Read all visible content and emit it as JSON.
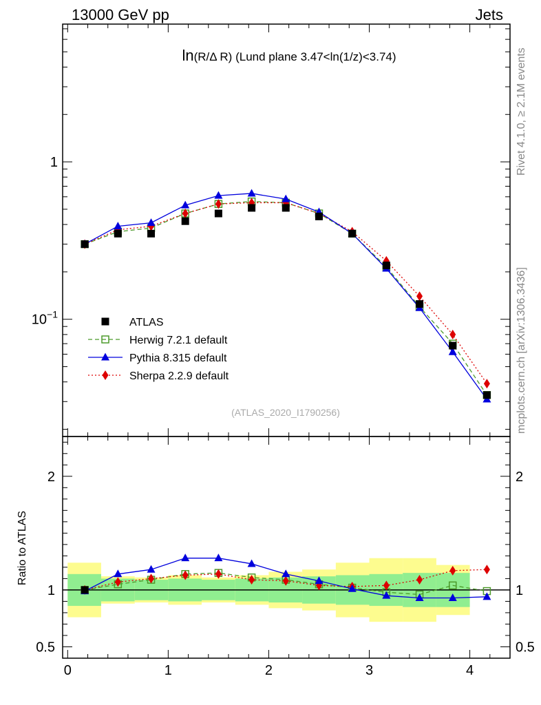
{
  "header": {
    "left": "13000 GeV pp",
    "right": "Jets"
  },
  "side_labels": {
    "rivet": "Rivet 4.1.0, ≥ 2.1M events",
    "mcplots": "mcplots.cern.ch [arXiv:1306.3436]"
  },
  "chart_data": {
    "type": "scatter",
    "title": "ln(R/Δ R) (Lund plane 3.47<ln(1/z)<3.74)",
    "title_parts": {
      "ln": "ln",
      "expr": "(R/Δ R)",
      "rest": "(Lund plane 3.47<ln(1/z)<3.74)"
    },
    "watermark": "(ATLAS_2020_I1790256)",
    "xlabel": "",
    "ylabel_ratio": "Ratio to ATLAS",
    "xlim": [
      -0.05,
      4.4
    ],
    "ylim_main": [
      0.018,
      7.5
    ],
    "ylim_ratio": [
      0.4,
      2.35
    ],
    "y_scale": "log",
    "x_ticks": [
      0,
      1,
      2,
      3,
      4
    ],
    "x_tick_labels": [
      "0",
      "1",
      "2",
      "3",
      "4"
    ],
    "main_y_ticks": [
      {
        "value": 1,
        "label": "1"
      },
      {
        "value": 0.1,
        "label": "10",
        "exp": "−1"
      }
    ],
    "ratio_y_ticks": [
      {
        "value": 2,
        "label": "2"
      },
      {
        "value": 1,
        "label": "1"
      },
      {
        "value": 0.5,
        "label": "0.5"
      }
    ],
    "legend_position": "bottom-left",
    "x": [
      0.17,
      0.5,
      0.83,
      1.17,
      1.5,
      1.83,
      2.17,
      2.5,
      2.83,
      3.17,
      3.5,
      3.83,
      4.17
    ],
    "bin_edges": [
      0,
      0.333,
      0.667,
      1.0,
      1.333,
      1.667,
      2.0,
      2.333,
      2.667,
      3.0,
      3.333,
      3.667,
      4.0,
      4.333
    ],
    "band_green_halfwidth": [
      0.14,
      0.1,
      0.09,
      0.1,
      0.09,
      0.1,
      0.11,
      0.12,
      0.13,
      0.14,
      0.15,
      0.15,
      0.0
    ],
    "band_yellow_halfwidth": [
      0.24,
      0.12,
      0.11,
      0.13,
      0.11,
      0.13,
      0.16,
      0.18,
      0.24,
      0.28,
      0.28,
      0.22,
      0.0
    ],
    "series": [
      {
        "name": "ATLAS",
        "color": "#000000",
        "marker": "square",
        "line": "none",
        "values": [
          0.3,
          0.35,
          0.35,
          0.42,
          0.47,
          0.51,
          0.51,
          0.45,
          0.35,
          0.22,
          0.125,
          0.068,
          0.033
        ]
      },
      {
        "name": "Herwig 7.2.1 default",
        "color": "#4c9a2a",
        "marker": "open-square",
        "line": "dashed",
        "values": [
          0.3,
          0.36,
          0.38,
          0.47,
          0.54,
          0.56,
          0.55,
          0.47,
          0.35,
          0.215,
          0.12,
          0.07,
          0.033
        ]
      },
      {
        "name": "Pythia 8.315 default",
        "color": "#0000dd",
        "marker": "triangle",
        "line": "solid",
        "values": [
          0.3,
          0.39,
          0.41,
          0.53,
          0.61,
          0.63,
          0.58,
          0.48,
          0.35,
          0.21,
          0.118,
          0.062,
          0.031
        ]
      },
      {
        "name": "Sherpa 2.2.9 default",
        "color": "#dd0000",
        "marker": "diamond",
        "line": "dotted",
        "values": [
          0.3,
          0.37,
          0.39,
          0.47,
          0.54,
          0.55,
          0.55,
          0.47,
          0.36,
          0.235,
          0.14,
          0.08,
          0.039
        ]
      }
    ],
    "ratio_series": [
      {
        "name": "Herwig 7.2.1 default",
        "values": [
          1.0,
          1.05,
          1.09,
          1.14,
          1.15,
          1.11,
          1.09,
          1.05,
          1.02,
          0.98,
          0.96,
          1.04,
          0.99
        ]
      },
      {
        "name": "Pythia 8.315 default",
        "values": [
          0.99,
          1.14,
          1.18,
          1.28,
          1.28,
          1.23,
          1.14,
          1.08,
          1.01,
          0.95,
          0.93,
          0.93,
          0.94
        ]
      },
      {
        "name": "Sherpa 2.2.9 default",
        "values": [
          1.0,
          1.07,
          1.1,
          1.13,
          1.14,
          1.09,
          1.08,
          1.04,
          1.03,
          1.04,
          1.09,
          1.17,
          1.18
        ]
      }
    ]
  }
}
